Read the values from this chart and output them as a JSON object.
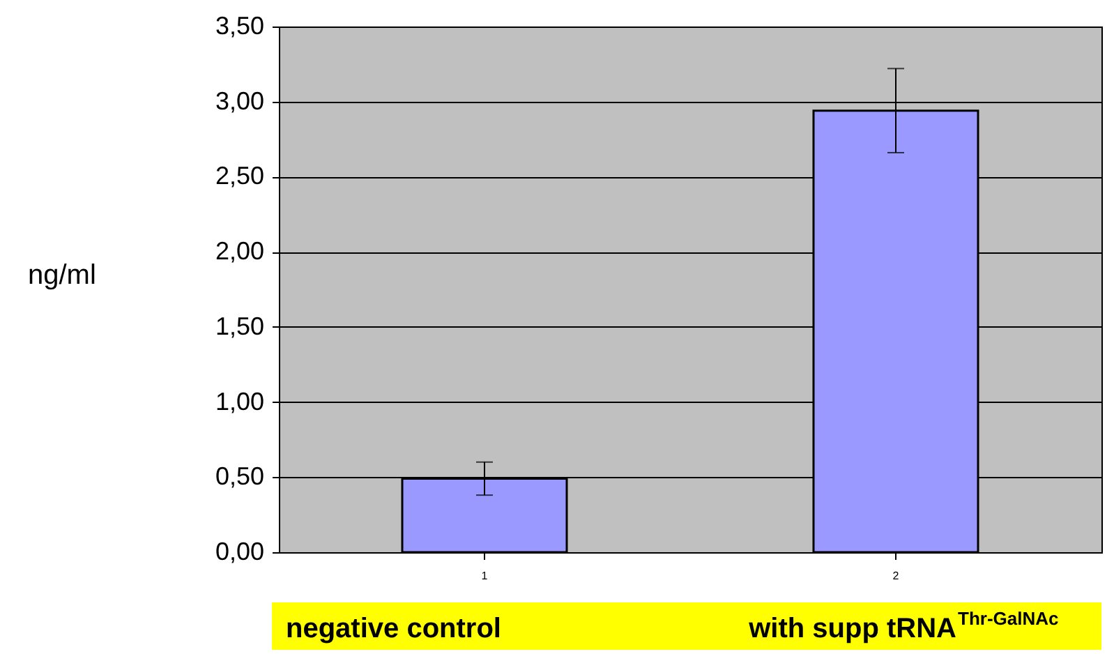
{
  "chart_data": {
    "type": "bar",
    "ylabel": "ng/ml",
    "categories": [
      "1",
      "2"
    ],
    "series": [
      {
        "color": "#9999ff",
        "values": [
          0.49,
          2.94
        ],
        "errors": [
          0.11,
          0.28
        ]
      }
    ],
    "ylim": [
      0,
      3.5
    ],
    "yticks": [
      {
        "value": 0,
        "label": "0,00"
      },
      {
        "value": 0.5,
        "label": "0,50"
      },
      {
        "value": 1,
        "label": "1,00"
      },
      {
        "value": 1.5,
        "label": "1,50"
      },
      {
        "value": 2,
        "label": "2,00"
      },
      {
        "value": 2.5,
        "label": "2,50"
      },
      {
        "value": 3,
        "label": "3,00"
      },
      {
        "value": 3.5,
        "label": "3,50"
      }
    ],
    "grid": "y",
    "annotations": [
      "negative control",
      "with supp tRNA$^{Thr-GalNAc}$"
    ]
  }
}
